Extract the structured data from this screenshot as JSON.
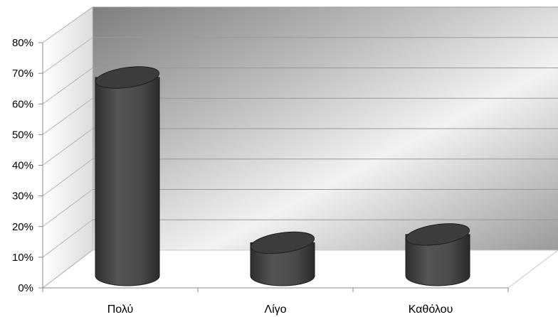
{
  "chart_data": {
    "type": "bar",
    "style": "3d-cylinder",
    "categories": [
      "Πολύ",
      "Λίγο",
      "Καθόλου"
    ],
    "values": [
      72,
      12,
      15
    ],
    "ylim": [
      0,
      80
    ],
    "yticks": [
      "0%",
      "10%",
      "20%",
      "30%",
      "40%",
      "50%",
      "60%",
      "70%",
      "80%"
    ],
    "grid": true,
    "legend": "none",
    "colors": {
      "bar": "#4a4a4a",
      "bar_top": "#3c3c3c",
      "wall_dark": "#8a8a8a",
      "wall_light": "#f0f0f0",
      "gridline": "#9a9a9a",
      "floor_line": "#bdbdbd"
    }
  }
}
